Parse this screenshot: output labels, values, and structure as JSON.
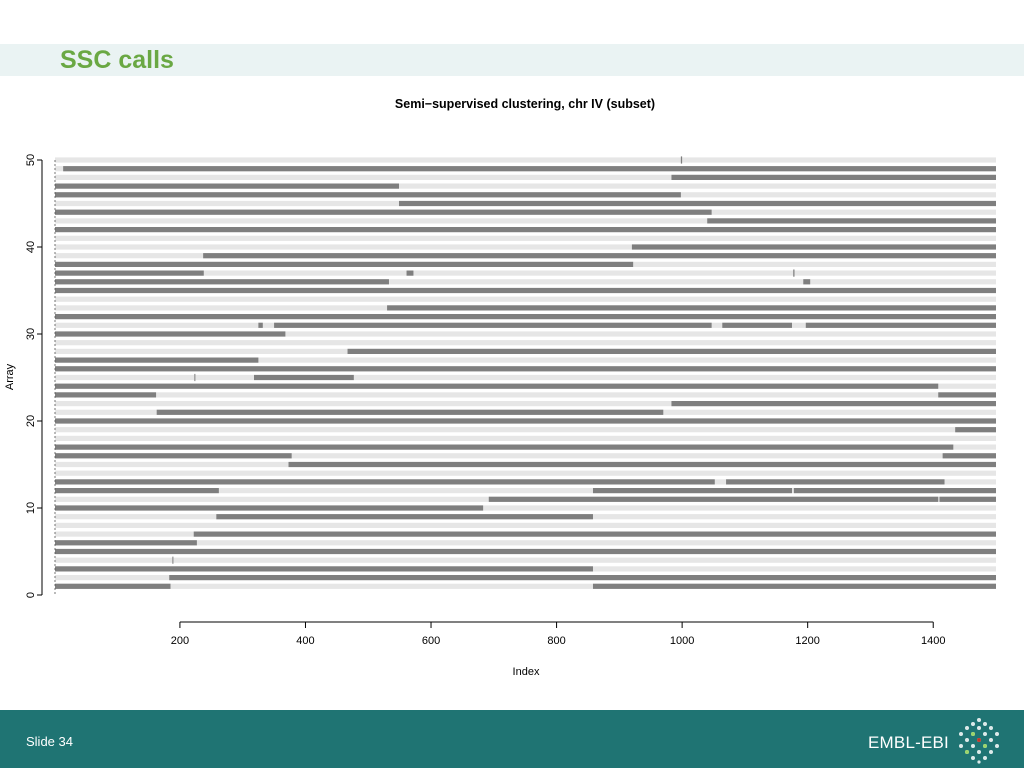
{
  "slide": {
    "title": "SSC calls",
    "number_label": "Slide 34",
    "logo_text": "EMBL-EBI"
  },
  "colors": {
    "title": "#6aa843",
    "footer": "#1f7473",
    "band": "#eaf3f3",
    "track_light": "#e6e6e6",
    "track_dark": "#7f7f7f"
  },
  "chart_data": {
    "type": "segment",
    "title": "Semi−supervised clustering, chr IV (subset)",
    "xlabel": "Index",
    "ylabel": "Array",
    "xlim": [
      1,
      1500
    ],
    "ylim": [
      0,
      50
    ],
    "x_ticks": [
      200,
      400,
      600,
      800,
      1000,
      1200,
      1400
    ],
    "y_ticks": [
      0,
      10,
      20,
      30,
      40,
      50
    ],
    "grid": false,
    "legend": "none",
    "rows": [
      {
        "array": 1,
        "segments": [
          [
            1,
            185
          ],
          [
            858,
            1500
          ]
        ]
      },
      {
        "array": 2,
        "segments": [
          [
            183,
            1500
          ]
        ]
      },
      {
        "array": 3,
        "segments": [
          [
            1,
            858
          ]
        ]
      },
      {
        "array": 4,
        "segments": [
          [
            188,
            189
          ]
        ]
      },
      {
        "array": 5,
        "segments": [
          [
            1,
            1500
          ]
        ]
      },
      {
        "array": 6,
        "segments": [
          [
            1,
            227
          ]
        ]
      },
      {
        "array": 7,
        "segments": [
          [
            222,
            1500
          ]
        ]
      },
      {
        "array": 8,
        "segments": []
      },
      {
        "array": 9,
        "segments": [
          [
            258,
            858
          ]
        ]
      },
      {
        "array": 10,
        "segments": [
          [
            1,
            683
          ]
        ]
      },
      {
        "array": 11,
        "segments": [
          [
            692,
            1408
          ],
          [
            1410,
            1500
          ]
        ]
      },
      {
        "array": 12,
        "segments": [
          [
            1,
            262
          ],
          [
            858,
            1175
          ],
          [
            1178,
            1500
          ]
        ]
      },
      {
        "array": 13,
        "segments": [
          [
            1,
            1052
          ],
          [
            1070,
            1418
          ]
        ]
      },
      {
        "array": 14,
        "segments": []
      },
      {
        "array": 15,
        "segments": [
          [
            373,
            1500
          ]
        ]
      },
      {
        "array": 16,
        "segments": [
          [
            1,
            378
          ],
          [
            1415,
            1500
          ]
        ]
      },
      {
        "array": 17,
        "segments": [
          [
            1,
            1432
          ]
        ]
      },
      {
        "array": 18,
        "segments": []
      },
      {
        "array": 19,
        "segments": [
          [
            1435,
            1500
          ]
        ]
      },
      {
        "array": 20,
        "segments": [
          [
            1,
            1500
          ]
        ]
      },
      {
        "array": 21,
        "segments": [
          [
            163,
            970
          ]
        ]
      },
      {
        "array": 22,
        "segments": [
          [
            983,
            1500
          ]
        ]
      },
      {
        "array": 23,
        "segments": [
          [
            1,
            162
          ],
          [
            1408,
            1500
          ]
        ]
      },
      {
        "array": 24,
        "segments": [
          [
            1,
            1408
          ]
        ]
      },
      {
        "array": 25,
        "segments": [
          [
            223,
            224
          ],
          [
            318,
            477
          ]
        ]
      },
      {
        "array": 26,
        "segments": [
          [
            1,
            1500
          ]
        ]
      },
      {
        "array": 27,
        "segments": [
          [
            1,
            325
          ]
        ]
      },
      {
        "array": 28,
        "segments": [
          [
            467,
            1500
          ]
        ]
      },
      {
        "array": 29,
        "segments": []
      },
      {
        "array": 30,
        "segments": [
          [
            1,
            368
          ]
        ]
      },
      {
        "array": 31,
        "segments": [
          [
            325,
            332
          ],
          [
            350,
            1047
          ],
          [
            1064,
            1175
          ],
          [
            1197,
            1500
          ]
        ]
      },
      {
        "array": 32,
        "segments": [
          [
            1,
            1500
          ]
        ]
      },
      {
        "array": 33,
        "segments": [
          [
            530,
            1500
          ]
        ]
      },
      {
        "array": 34,
        "segments": []
      },
      {
        "array": 35,
        "segments": [
          [
            1,
            1500
          ]
        ]
      },
      {
        "array": 36,
        "segments": [
          [
            1,
            533
          ],
          [
            1193,
            1204
          ]
        ]
      },
      {
        "array": 37,
        "segments": [
          [
            1,
            238
          ],
          [
            561,
            572
          ],
          [
            1177,
            1179
          ]
        ]
      },
      {
        "array": 38,
        "segments": [
          [
            1,
            922
          ]
        ]
      },
      {
        "array": 39,
        "segments": [
          [
            237,
            1500
          ]
        ]
      },
      {
        "array": 40,
        "segments": [
          [
            920,
            1500
          ]
        ]
      },
      {
        "array": 41,
        "segments": []
      },
      {
        "array": 42,
        "segments": [
          [
            1,
            1500
          ]
        ]
      },
      {
        "array": 43,
        "segments": [
          [
            1040,
            1500
          ]
        ]
      },
      {
        "array": 44,
        "segments": [
          [
            1,
            1047
          ]
        ]
      },
      {
        "array": 45,
        "segments": [
          [
            549,
            1500
          ]
        ]
      },
      {
        "array": 46,
        "segments": [
          [
            1,
            998
          ]
        ]
      },
      {
        "array": 47,
        "segments": [
          [
            1,
            549
          ]
        ]
      },
      {
        "array": 48,
        "segments": [
          [
            983,
            1500
          ]
        ]
      },
      {
        "array": 49,
        "segments": [
          [
            14,
            1500
          ]
        ]
      },
      {
        "array": 50,
        "segments": [
          [
            998,
            1000
          ]
        ]
      }
    ]
  }
}
